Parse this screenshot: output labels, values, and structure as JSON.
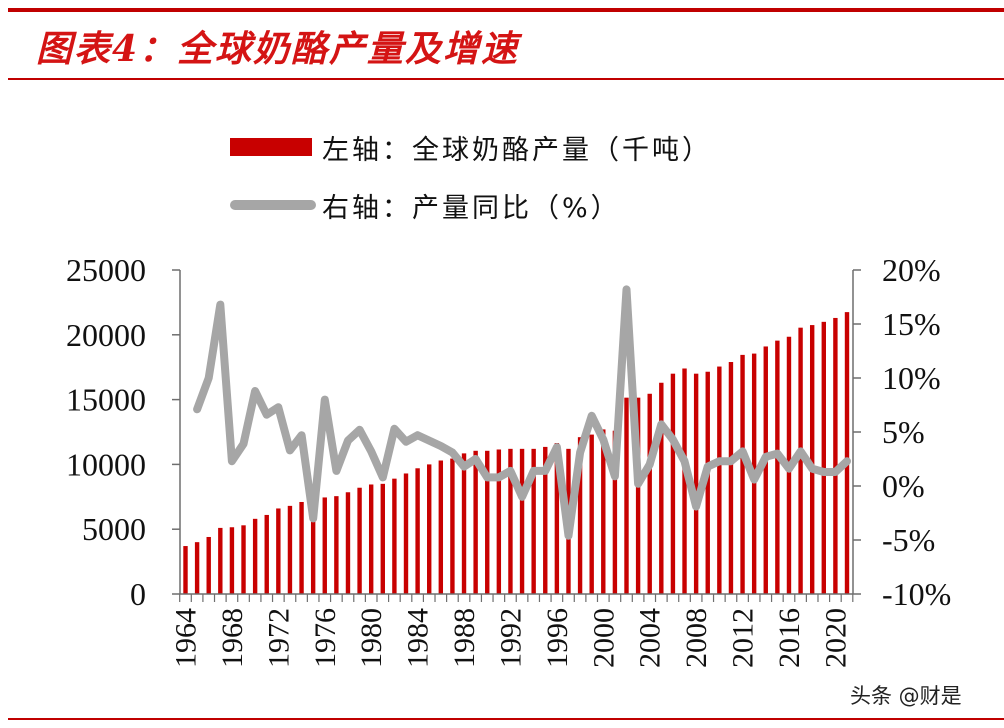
{
  "header": {
    "title": "图表4：全球奶酪产量及增速"
  },
  "legend": {
    "bar_label": "左轴：全球奶酪产量（千吨）",
    "line_label": "右轴：产量同比（%）"
  },
  "watermark": "头条 @财是",
  "colors": {
    "bar": "#c80000",
    "line": "#a6a6a6",
    "accent": "#d41414",
    "rule": "#c00000"
  },
  "chart_data": {
    "type": "bar+line",
    "title": "全球奶酪产量及增速",
    "xlabel": "",
    "ylabel_left": "全球奶酪产量（千吨）",
    "ylabel_right": "产量同比（%）",
    "ylim_left": [
      0,
      25000
    ],
    "ylim_right": [
      -10,
      20
    ],
    "left_ticks": [
      "0",
      "5000",
      "10000",
      "15000",
      "20000",
      "25000"
    ],
    "right_ticks": [
      "-10%",
      "-5%",
      "0%",
      "5%",
      "10%",
      "15%",
      "20%"
    ],
    "x_tick_labels": [
      "1964",
      "1968",
      "1972",
      "1976",
      "1980",
      "1984",
      "1988",
      "1992",
      "1996",
      "2000",
      "2004",
      "2008",
      "2012",
      "2016",
      "2020"
    ],
    "legend_position": "top",
    "grid": false,
    "categories": [
      1964,
      1965,
      1966,
      1967,
      1968,
      1969,
      1970,
      1971,
      1972,
      1973,
      1974,
      1975,
      1976,
      1977,
      1978,
      1979,
      1980,
      1981,
      1982,
      1983,
      1984,
      1985,
      1986,
      1987,
      1988,
      1989,
      1990,
      1991,
      1992,
      1993,
      1994,
      1995,
      1996,
      1997,
      1998,
      1999,
      2000,
      2001,
      2002,
      2003,
      2004,
      2005,
      2006,
      2007,
      2008,
      2009,
      2010,
      2011,
      2012,
      2013,
      2014,
      2015,
      2016,
      2017,
      2018,
      2019,
      2020,
      2021
    ],
    "series": [
      {
        "name": "左轴：全球奶酪产量（千吨）",
        "type": "bar",
        "axis": "left",
        "values": [
          3700,
          4000,
          4400,
          5100,
          5150,
          5300,
          5800,
          6100,
          6600,
          6800,
          7100,
          6900,
          7450,
          7550,
          7850,
          8200,
          8450,
          8500,
          8900,
          9300,
          9700,
          10000,
          10300,
          10450,
          10850,
          11050,
          11050,
          11150,
          11200,
          11200,
          11200,
          11350,
          11650,
          11200,
          12100,
          12300,
          12700,
          12600,
          15150,
          15150,
          15450,
          16300,
          17000,
          17400,
          17000,
          17150,
          17550,
          17900,
          18450,
          18550,
          19100,
          19550,
          19850,
          20550,
          20750,
          21000,
          21300,
          21750
        ]
      },
      {
        "name": "右轴：产量同比（%）",
        "type": "line",
        "axis": "right",
        "values": [
          null,
          7.1,
          10.0,
          16.8,
          2.3,
          3.9,
          8.8,
          6.6,
          7.3,
          3.3,
          4.7,
          -3.0,
          8.0,
          1.4,
          4.2,
          5.2,
          3.2,
          0.8,
          5.3,
          4.1,
          4.7,
          4.2,
          3.7,
          3.1,
          1.8,
          2.5,
          0.8,
          0.8,
          1.4,
          -1.0,
          1.4,
          1.4,
          3.6,
          -4.6,
          3.1,
          6.5,
          4.3,
          0.9,
          18.2,
          0.2,
          2.0,
          5.7,
          4.3,
          2.3,
          -1.9,
          1.8,
          2.3,
          2.3,
          3.2,
          0.6,
          2.7,
          3.0,
          1.6,
          3.2,
          1.6,
          1.3,
          1.3,
          2.3
        ]
      }
    ]
  }
}
